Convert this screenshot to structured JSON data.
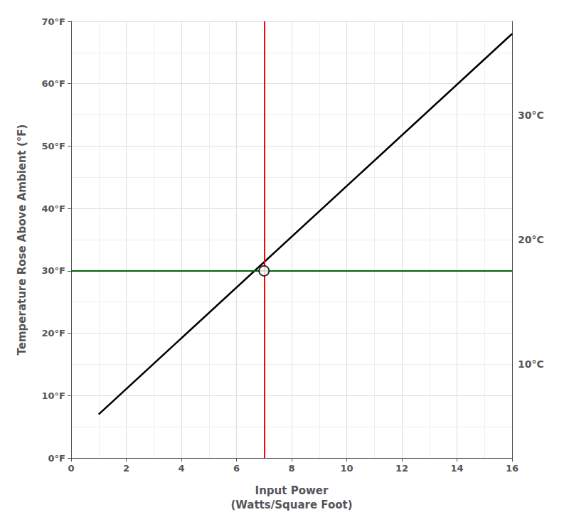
{
  "chart_data": {
    "type": "line",
    "xlabel": "Input Power\n(Watts/Square Foot)",
    "ylabel": "Temperature Rose Above Ambient (°F)",
    "x": [
      1.0,
      16.0
    ],
    "series": [
      {
        "values": [
          7.0,
          68.0
        ],
        "color": "#000000"
      }
    ],
    "xlim": [
      0,
      16
    ],
    "ylim": [
      0,
      70
    ],
    "xticks": [
      0,
      2,
      4,
      6,
      8,
      10,
      12,
      14,
      16
    ],
    "yticks": [
      {
        "value": 0,
        "label": "0°F"
      },
      {
        "value": 10,
        "label": "10°F"
      },
      {
        "value": 20,
        "label": "20°F"
      },
      {
        "value": 30,
        "label": "30°F"
      },
      {
        "value": 40,
        "label": "40°F"
      },
      {
        "value": 50,
        "label": "50°F"
      },
      {
        "value": 60,
        "label": "60°F"
      },
      {
        "value": 70,
        "label": "70°F"
      }
    ],
    "xticks_minor": [
      1,
      3,
      5,
      7,
      9,
      11,
      13,
      15
    ],
    "yticks_minor": [
      5,
      15,
      25,
      35,
      45,
      55,
      65
    ],
    "grid": true,
    "vline": {
      "x": 7.0,
      "color": "#ff0000"
    },
    "hline": {
      "y": 30.0,
      "color": "#006400"
    },
    "point": {
      "x": 7.0,
      "y": 30.0,
      "color": "#000000"
    },
    "annotations": [
      {
        "label": "30°C",
        "y": 55
      },
      {
        "label": "20°C",
        "y": 35
      },
      {
        "label": "10°C",
        "y": 15
      }
    ]
  }
}
